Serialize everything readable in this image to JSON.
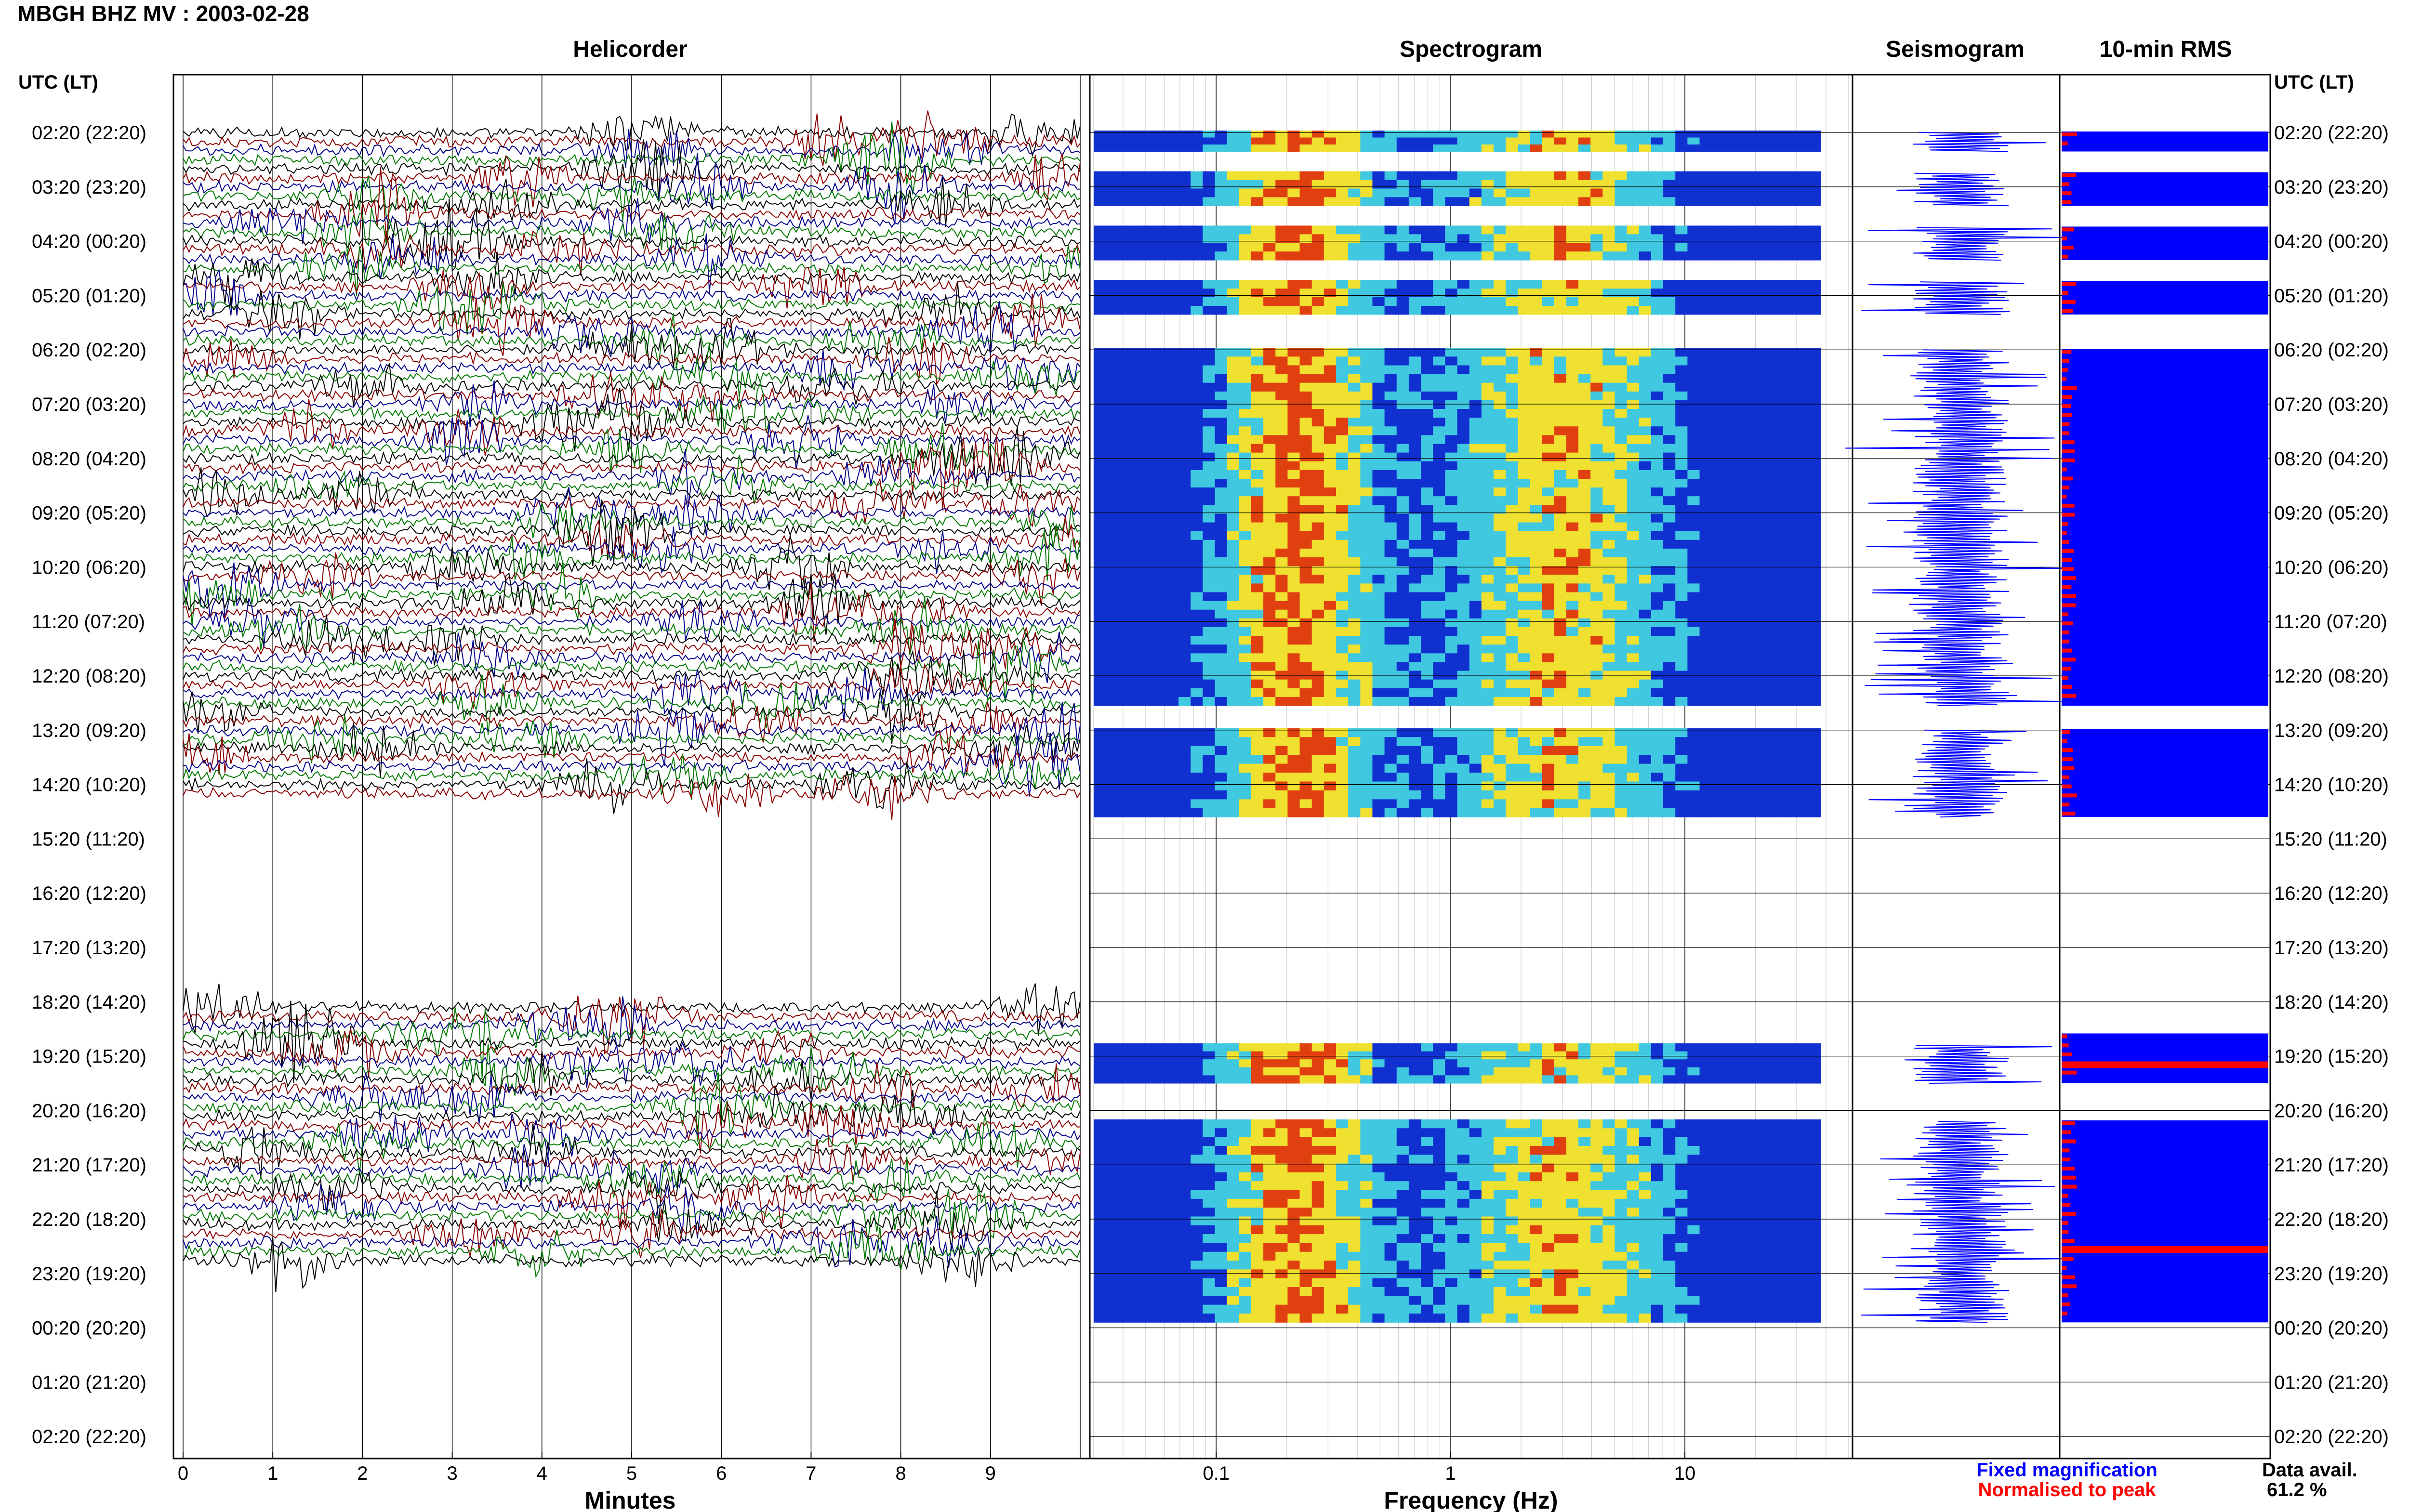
{
  "title": "MBGH BHZ MV : 2003-02-28",
  "colors": {
    "helicorder_traces": [
      "#000000",
      "#8b0000",
      "#00008b",
      "#007a00"
    ],
    "seismogram": "#0000ff",
    "rms_fixed": "#0000ff",
    "rms_normalised": "#ff0000",
    "spectrogram_low": "#1030d0",
    "spectrogram_mid": "#40c8e0",
    "spectrogram_high": "#f0e030",
    "spectrogram_peak": "#e04010"
  },
  "panels": {
    "helicorder": {
      "title": "Helicorder",
      "xlabel": "Minutes"
    },
    "spectrogram": {
      "title": "Spectrogram",
      "xlabel": "Frequency (Hz)"
    },
    "seismogram": {
      "title": "Seismogram"
    },
    "rms": {
      "title": "10-min RMS"
    }
  },
  "time_axis": {
    "left_header": "UTC (LT)",
    "right_header": "UTC (LT)",
    "labels": [
      "02:20 (22:20)",
      "03:20 (23:20)",
      "04:20 (00:20)",
      "05:20 (01:20)",
      "06:20 (02:20)",
      "07:20 (03:20)",
      "08:20 (04:20)",
      "09:20 (05:20)",
      "10:20 (06:20)",
      "11:20 (07:20)",
      "12:20 (08:20)",
      "13:20 (09:20)",
      "14:20 (10:20)",
      "15:20 (11:20)",
      "16:20 (12:20)",
      "17:20 (13:20)",
      "18:20 (14:20)",
      "19:20 (15:20)",
      "20:20 (16:20)",
      "21:20 (17:20)",
      "22:20 (18:20)",
      "23:20 (19:20)",
      "00:20 (20:20)",
      "01:20 (21:20)",
      "02:20 (22:20)"
    ]
  },
  "chart_data": [
    {
      "type": "line",
      "name_ref": "Helicorder",
      "xlabel": "Minutes",
      "xticks": [
        "0",
        "1",
        "2",
        "3",
        "4",
        "5",
        "6",
        "7",
        "8",
        "9"
      ],
      "xlim": [
        0,
        10
      ],
      "data_segments_hours": [
        [
          0.0,
          12.3
        ],
        [
          16.1,
          21.0
        ]
      ]
    },
    {
      "type": "heatmap",
      "name_ref": "Spectrogram",
      "xlabel": "Frequency (Hz)",
      "xscale": "log",
      "xticks": [
        "0.1",
        "1",
        "10"
      ],
      "xlim": [
        0.03,
        50
      ],
      "blocks_hours": [
        [
          0.0,
          0.35
        ],
        [
          0.75,
          1.35
        ],
        [
          1.75,
          2.35
        ],
        [
          2.75,
          3.35
        ],
        [
          4.0,
          10.55
        ],
        [
          11.0,
          12.6
        ],
        [
          16.8,
          17.5
        ],
        [
          18.2,
          21.9
        ]
      ]
    },
    {
      "type": "line",
      "name_ref": "Seismogram",
      "blocks_hours": [
        [
          0.0,
          0.35
        ],
        [
          0.75,
          1.35
        ],
        [
          1.75,
          2.35
        ],
        [
          2.75,
          3.35
        ],
        [
          4.0,
          10.55
        ],
        [
          11.0,
          12.6
        ],
        [
          16.8,
          17.5
        ],
        [
          18.2,
          21.9
        ]
      ]
    },
    {
      "type": "bar",
      "name_ref": "10-min RMS",
      "legend": [
        "Fixed magnification",
        "Normalised to peak"
      ],
      "blocks_hours": [
        [
          0.0,
          0.35
        ],
        [
          0.75,
          1.35
        ],
        [
          1.75,
          2.35
        ],
        [
          2.75,
          3.35
        ],
        [
          4.0,
          10.55
        ],
        [
          11.0,
          12.6
        ],
        [
          16.6,
          17.5
        ],
        [
          18.2,
          21.9
        ]
      ],
      "normalised_peaks_hours": [
        17.15,
        20.55
      ]
    }
  ],
  "footer": {
    "legend_fixed": "Fixed magnification",
    "legend_normalised": "Normalised to peak",
    "data_avail_label": "Data avail.",
    "data_avail_value": "61.2 %"
  }
}
